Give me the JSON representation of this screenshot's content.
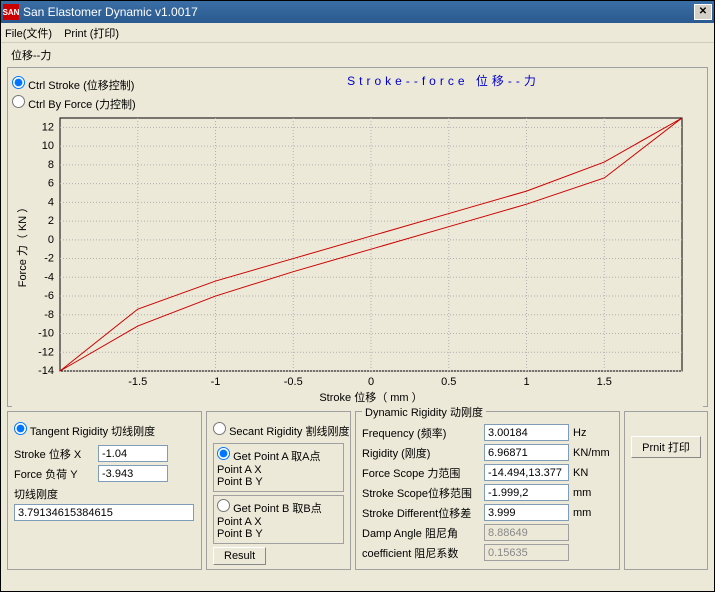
{
  "window": {
    "title": "San Elastomer Dynamic v1.0017",
    "icon_text": "SAN"
  },
  "menu": {
    "file": "File(文件)",
    "print": "Print (打印)"
  },
  "tab": "位移--力",
  "control_mode": {
    "stroke": "Ctrl Stroke (位移控制)",
    "force": "Ctrl By Force (力控制)",
    "selected": "stroke"
  },
  "chart": {
    "title": "Stroke--force  位移--力",
    "xlabel": "Stroke 位移（ mm ）",
    "ylabel": "Force 力（ KN ）",
    "xlim": [
      -2,
      2
    ],
    "ylim": [
      -14,
      13
    ],
    "xticks": [
      -1.5,
      -1,
      -0.5,
      0,
      0.5,
      1,
      1.5
    ],
    "yticks": [
      -14,
      -12,
      -10,
      -8,
      -6,
      -4,
      -2,
      0,
      2,
      4,
      6,
      8,
      10,
      12
    ],
    "background": "#ece9d8",
    "plot_bg": "#ece9d8",
    "grid_color": "#b0b0b0",
    "axis_color": "#000000",
    "line_color": "#cc0000",
    "line_width": 1,
    "upper_curve": [
      [
        -2,
        -14
      ],
      [
        -1.5,
        -9.2
      ],
      [
        -1,
        -6
      ],
      [
        -0.5,
        -3.4
      ],
      [
        0,
        -1
      ],
      [
        0.5,
        1.4
      ],
      [
        1,
        3.8
      ],
      [
        1.5,
        6.6
      ],
      [
        2,
        13
      ]
    ],
    "lower_curve": [
      [
        2,
        13
      ],
      [
        1.5,
        8.3
      ],
      [
        1,
        5.2
      ],
      [
        0.5,
        2.8
      ],
      [
        0,
        0.4
      ],
      [
        -0.5,
        -2
      ],
      [
        -1,
        -4.4
      ],
      [
        -1.5,
        -7.4
      ],
      [
        -2,
        -14
      ]
    ]
  },
  "tangent": {
    "tangent_label": "Tangent Rigidity 切线刚度",
    "secant_label": "Secant Rigidity 割线刚度",
    "selected": "tangent",
    "stroke_x_label": "Stroke 位移 X",
    "stroke_x_value": "-1.04",
    "force_y_label": "Force 负荷 Y",
    "force_y_value": "-3.943",
    "slope_label": "切线刚度",
    "slope_value": "3.79134615384615"
  },
  "points": {
    "getA_label": "Get Point A 取A点",
    "getB_label": "Get Point B 取B点",
    "pax": "Point A X",
    "pay": "Point A Y",
    "pbx": "Point B X",
    "pby": "Point B Y",
    "result": "Result",
    "selected": "A"
  },
  "dynamic": {
    "title": "Dynamic Rigidity 动刚度",
    "freq_label": "Frequency (频率)",
    "freq_value": "3.00184",
    "freq_unit": "Hz",
    "rigidity_label": "Rigidity (刚度)",
    "rigidity_value": "6.96871",
    "rigidity_unit": "KN/mm",
    "fscope_label": "Force Scope 力范围",
    "fscope_value": "-14.494,13.377",
    "fscope_unit": "KN",
    "sscope_label": "Stroke Scope位移范围",
    "sscope_value": "-1.999,2",
    "sscope_unit": "mm",
    "sdiff_label": "Stroke Different位移差",
    "sdiff_value": "3.999",
    "sdiff_unit": "mm",
    "damp_label": "Damp Angle 阻尼角",
    "damp_value": "8.88649",
    "coef_label": "coefficient 阻尼系数",
    "coef_value": "0.15635"
  },
  "print_btn": "Prnit 打印"
}
